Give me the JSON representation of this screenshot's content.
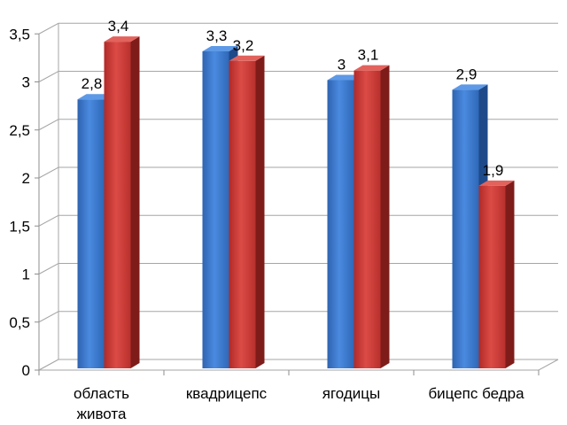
{
  "chart_data": {
    "type": "bar",
    "style": "3d-clustered-column",
    "categories": [
      [
        "область",
        "живота"
      ],
      [
        "квадрицепс"
      ],
      [
        "ягодицы"
      ],
      [
        "бицепс бедра"
      ]
    ],
    "series": [
      {
        "values": [
          2.8,
          3.3,
          3.0,
          2.9
        ],
        "labels": [
          "2,8",
          "3,3",
          "3",
          "2,9"
        ],
        "color": "#3a78cc"
      },
      {
        "values": [
          3.4,
          3.2,
          3.1,
          1.9
        ],
        "labels": [
          "3,4",
          "3,2",
          "3,1",
          "1,9"
        ],
        "color": "#cc3a36"
      }
    ],
    "y_ticks": [
      "0",
      "0,5",
      "1",
      "1,5",
      "2",
      "2,5",
      "3",
      "3,5"
    ],
    "ylim": [
      0,
      3.5
    ],
    "grid": true,
    "legend": "none"
  }
}
